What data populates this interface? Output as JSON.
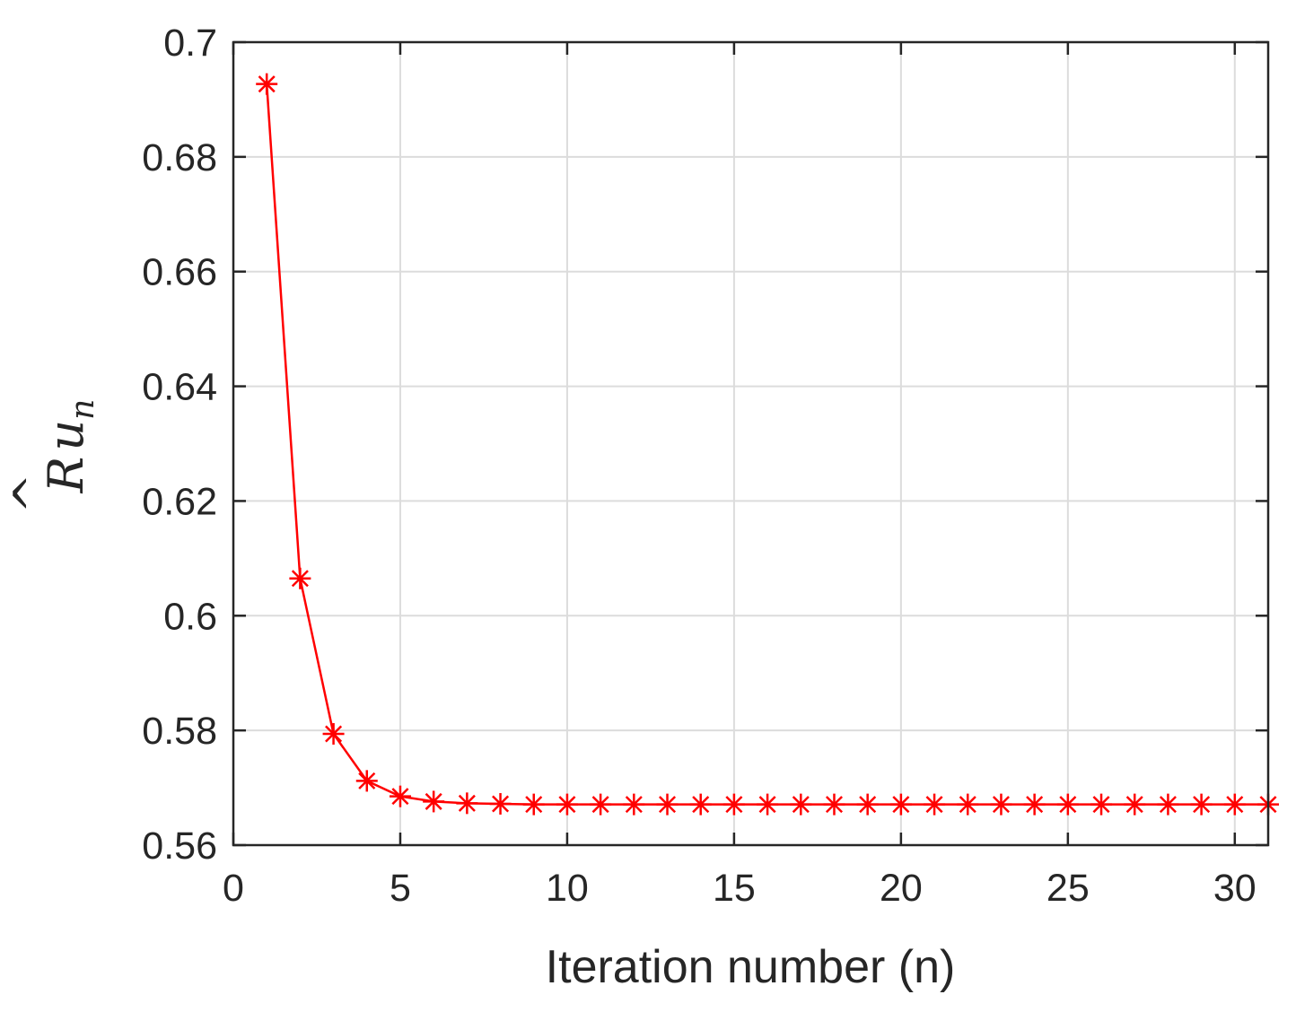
{
  "chart_data": {
    "type": "line",
    "xlabel": "Iteration number (n)",
    "ylabel": {
      "base": "R",
      "accent": "^",
      "var": "u",
      "sub": "n"
    },
    "xlim": [
      0,
      31
    ],
    "ylim": [
      0.56,
      0.7
    ],
    "xticks": [
      0,
      5,
      10,
      15,
      20,
      25,
      30
    ],
    "yticks": [
      0.56,
      0.58,
      0.6,
      0.62,
      0.64,
      0.66,
      0.68,
      0.7
    ],
    "xtick_labels": [
      "0",
      "5",
      "10",
      "15",
      "20",
      "25",
      "30"
    ],
    "ytick_labels": [
      "0.56",
      "0.58",
      "0.6",
      "0.62",
      "0.64",
      "0.66",
      "0.68",
      "0.7"
    ],
    "grid": true,
    "series": [
      {
        "color": "#ff0000",
        "marker": "asterisk",
        "x": [
          1,
          2,
          3,
          4,
          5,
          6,
          7,
          8,
          9,
          10,
          11,
          12,
          13,
          14,
          15,
          16,
          17,
          18,
          19,
          20,
          21,
          22,
          23,
          24,
          25,
          26,
          27,
          28,
          29,
          30,
          31
        ],
        "y": [
          0.6927,
          0.6065,
          0.5794,
          0.5712,
          0.5685,
          0.5676,
          0.5673,
          0.5672,
          0.5671,
          0.5671,
          0.5671,
          0.5671,
          0.5671,
          0.5671,
          0.5671,
          0.5671,
          0.5671,
          0.5671,
          0.5671,
          0.5671,
          0.5671,
          0.5671,
          0.5671,
          0.5671,
          0.5671,
          0.5671,
          0.5671,
          0.5671,
          0.5671,
          0.5671,
          0.5671
        ]
      }
    ]
  }
}
